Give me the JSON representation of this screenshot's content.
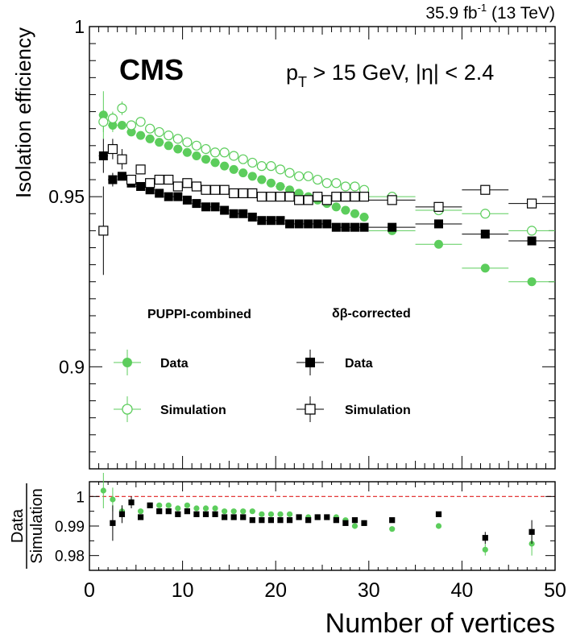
{
  "header": {
    "lumi_value": "35.9 fb",
    "lumi_exp": "-1",
    "energy": "(13 TeV)"
  },
  "labels": {
    "cms": "CMS",
    "cut_p": "p",
    "cut_sub": "T",
    "cut_rest": " > 15 GeV, |η| < 2.4",
    "legend_group_puppi": "PUPPI-combined",
    "legend_group_db": "δβ-corrected",
    "legend_data_1": "Data",
    "legend_sim_1": "Simulation",
    "legend_data_2": "Data",
    "legend_sim_2": "Simulation"
  },
  "colors": {
    "puppi": "#5ccd5c",
    "deltabeta": "#000000",
    "unity_line": "#e02020"
  },
  "chart_data": [
    {
      "type": "scatter",
      "title": "",
      "xlabel": "Number of vertices",
      "ylabel": "Isolation efficiency",
      "xlim": [
        0,
        50
      ],
      "ylim": [
        0.87,
        1.0
      ],
      "yticks": [
        "0.9",
        "0.95",
        "1"
      ],
      "xticks": [
        "0",
        "10",
        "20",
        "30",
        "40",
        "50"
      ],
      "legend_position": "bottom-left",
      "series": [
        {
          "name": "PUPPI-combined Data",
          "marker": "filled-circle",
          "x": [
            1.5,
            2.5,
            3.5,
            4.5,
            5.5,
            6.5,
            7.5,
            8.5,
            9.5,
            10.5,
            11.5,
            12.5,
            13.5,
            14.5,
            15.5,
            16.5,
            17.5,
            18.5,
            19.5,
            20.5,
            21.5,
            22.5,
            23.5,
            24.5,
            25.5,
            26.5,
            27.5,
            28.5,
            29.5,
            32.5,
            37.5,
            42.5,
            47.5
          ],
          "y": [
            0.974,
            0.971,
            0.971,
            0.969,
            0.968,
            0.967,
            0.966,
            0.965,
            0.964,
            0.963,
            0.962,
            0.961,
            0.96,
            0.959,
            0.958,
            0.957,
            0.956,
            0.955,
            0.954,
            0.953,
            0.952,
            0.951,
            0.95,
            0.949,
            0.948,
            0.947,
            0.946,
            0.945,
            0.944,
            0.94,
            0.936,
            0.929,
            0.925
          ],
          "xerr": [
            0.5,
            0.5,
            0.5,
            0.5,
            0.5,
            0.5,
            0.5,
            0.5,
            0.5,
            0.5,
            0.5,
            0.5,
            0.5,
            0.5,
            0.5,
            0.5,
            0.5,
            0.5,
            0.5,
            0.5,
            0.5,
            0.5,
            0.5,
            0.5,
            0.5,
            0.5,
            0.5,
            0.5,
            0.5,
            2.5,
            2.5,
            2.5,
            2.5
          ],
          "yerr": [
            0.007,
            0.002,
            0,
            0,
            0,
            0,
            0,
            0,
            0,
            0,
            0,
            0,
            0,
            0,
            0,
            0,
            0,
            0,
            0,
            0,
            0,
            0,
            0,
            0,
            0,
            0,
            0,
            0,
            0,
            0,
            0,
            0,
            0
          ]
        },
        {
          "name": "PUPPI-combined Simulation",
          "marker": "open-circle",
          "x": [
            1.5,
            2.5,
            3.5,
            4.5,
            5.5,
            6.5,
            7.5,
            8.5,
            9.5,
            10.5,
            11.5,
            12.5,
            13.5,
            14.5,
            15.5,
            16.5,
            17.5,
            18.5,
            19.5,
            20.5,
            21.5,
            22.5,
            23.5,
            24.5,
            25.5,
            26.5,
            27.5,
            28.5,
            29.5,
            32.5,
            37.5,
            42.5,
            47.5
          ],
          "y": [
            0.972,
            0.973,
            0.976,
            0.971,
            0.972,
            0.97,
            0.969,
            0.968,
            0.967,
            0.966,
            0.965,
            0.964,
            0.963,
            0.963,
            0.962,
            0.961,
            0.96,
            0.959,
            0.959,
            0.958,
            0.957,
            0.956,
            0.956,
            0.955,
            0.954,
            0.954,
            0.953,
            0.953,
            0.952,
            0.95,
            0.946,
            0.945,
            0.94
          ],
          "xerr": [
            0.5,
            0.5,
            0.5,
            0.5,
            0.5,
            0.5,
            0.5,
            0.5,
            0.5,
            0.5,
            0.5,
            0.5,
            0.5,
            0.5,
            0.5,
            0.5,
            0.5,
            0.5,
            0.5,
            0.5,
            0.5,
            0.5,
            0.5,
            0.5,
            0.5,
            0.5,
            0.5,
            0.5,
            0.5,
            2.5,
            2.5,
            2.5,
            2.5
          ],
          "yerr": [
            0.003,
            0.002,
            0.002,
            0,
            0,
            0,
            0,
            0,
            0,
            0,
            0,
            0,
            0,
            0,
            0,
            0,
            0,
            0,
            0,
            0,
            0,
            0,
            0,
            0,
            0,
            0,
            0,
            0,
            0,
            0,
            0,
            0,
            0
          ]
        },
        {
          "name": "δβ-corrected Data",
          "marker": "filled-square",
          "x": [
            1.5,
            2.5,
            3.5,
            4.5,
            5.5,
            6.5,
            7.5,
            8.5,
            9.5,
            10.5,
            11.5,
            12.5,
            13.5,
            14.5,
            15.5,
            16.5,
            17.5,
            18.5,
            19.5,
            20.5,
            21.5,
            22.5,
            23.5,
            24.5,
            25.5,
            26.5,
            27.5,
            28.5,
            29.5,
            32.5,
            37.5,
            42.5,
            47.5
          ],
          "y": [
            0.962,
            0.955,
            0.956,
            0.954,
            0.953,
            0.952,
            0.951,
            0.95,
            0.95,
            0.949,
            0.948,
            0.947,
            0.947,
            0.946,
            0.945,
            0.945,
            0.944,
            0.943,
            0.943,
            0.943,
            0.942,
            0.942,
            0.942,
            0.942,
            0.942,
            0.941,
            0.941,
            0.941,
            0.941,
            0.941,
            0.942,
            0.939,
            0.937
          ],
          "xerr": [
            0.5,
            0.5,
            0.5,
            0.5,
            0.5,
            0.5,
            0.5,
            0.5,
            0.5,
            0.5,
            0.5,
            0.5,
            0.5,
            0.5,
            0.5,
            0.5,
            0.5,
            0.5,
            0.5,
            0.5,
            0.5,
            0.5,
            0.5,
            0.5,
            0.5,
            0.5,
            0.5,
            0.5,
            0.5,
            2.5,
            2.5,
            2.5,
            2.5
          ],
          "yerr": [
            0.005,
            0.002,
            0,
            0,
            0,
            0,
            0,
            0,
            0,
            0,
            0,
            0,
            0,
            0,
            0,
            0,
            0,
            0,
            0,
            0,
            0,
            0,
            0,
            0,
            0,
            0,
            0,
            0,
            0,
            0,
            0,
            0,
            0
          ]
        },
        {
          "name": "δβ-corrected Simulation",
          "marker": "open-square",
          "x": [
            1.5,
            2.5,
            3.5,
            4.5,
            5.5,
            6.5,
            7.5,
            8.5,
            9.5,
            10.5,
            11.5,
            12.5,
            13.5,
            14.5,
            15.5,
            16.5,
            17.5,
            18.5,
            19.5,
            20.5,
            21.5,
            22.5,
            23.5,
            24.5,
            25.5,
            26.5,
            27.5,
            28.5,
            29.5,
            32.5,
            37.5,
            42.5,
            47.5
          ],
          "y": [
            0.94,
            0.964,
            0.961,
            0.955,
            0.958,
            0.954,
            0.955,
            0.955,
            0.953,
            0.954,
            0.953,
            0.952,
            0.952,
            0.952,
            0.951,
            0.951,
            0.951,
            0.95,
            0.95,
            0.95,
            0.95,
            0.949,
            0.949,
            0.95,
            0.949,
            0.95,
            0.95,
            0.95,
            0.95,
            0.949,
            0.947,
            0.952,
            0.948
          ],
          "xerr": [
            0.5,
            0.5,
            0.5,
            0.5,
            0.5,
            0.5,
            0.5,
            0.5,
            0.5,
            0.5,
            0.5,
            0.5,
            0.5,
            0.5,
            0.5,
            0.5,
            0.5,
            0.5,
            0.5,
            0.5,
            0.5,
            0.5,
            0.5,
            0.5,
            0.5,
            0.5,
            0.5,
            0.5,
            0.5,
            2.5,
            2.5,
            2.5,
            2.5
          ],
          "yerr": [
            0.013,
            0.003,
            0.003,
            0,
            0,
            0,
            0,
            0,
            0,
            0,
            0,
            0,
            0,
            0,
            0,
            0,
            0,
            0,
            0,
            0,
            0,
            0,
            0,
            0,
            0,
            0,
            0,
            0,
            0,
            0,
            0,
            0,
            0
          ]
        }
      ]
    },
    {
      "type": "scatter",
      "title": "",
      "xlabel": "Number of vertices",
      "ylabel_top": "Data",
      "ylabel_bottom": "Simulation",
      "xlim": [
        0,
        50
      ],
      "ylim": [
        0.975,
        1.005
      ],
      "yticks": [
        "0.98",
        "0.99",
        "1"
      ],
      "reference_line": 1.0,
      "series": [
        {
          "name": "PUPPI-combined",
          "marker": "filled-circle",
          "x": [
            1.5,
            2.5,
            3.5,
            4.5,
            5.5,
            6.5,
            7.5,
            8.5,
            9.5,
            10.5,
            11.5,
            12.5,
            13.5,
            14.5,
            15.5,
            16.5,
            17.5,
            18.5,
            19.5,
            20.5,
            21.5,
            22.5,
            23.5,
            24.5,
            25.5,
            26.5,
            27.5,
            28.5,
            29.5,
            32.5,
            37.5,
            42.5,
            47.5
          ],
          "y": [
            1.002,
            0.999,
            0.995,
            0.998,
            0.995,
            0.997,
            0.997,
            0.997,
            0.996,
            0.997,
            0.996,
            0.996,
            0.996,
            0.995,
            0.995,
            0.995,
            0.995,
            0.994,
            0.994,
            0.994,
            0.994,
            0.993,
            0.993,
            0.993,
            0.993,
            0.993,
            0.992,
            0.99,
            0.991,
            0.989,
            0.99,
            0.982,
            0.984
          ],
          "yerr": [
            0.006,
            0.004,
            0.002,
            0,
            0,
            0,
            0,
            0,
            0,
            0,
            0,
            0,
            0,
            0,
            0,
            0,
            0,
            0,
            0,
            0,
            0,
            0,
            0,
            0,
            0,
            0,
            0,
            0,
            0,
            0,
            0,
            0.002,
            0.004
          ]
        },
        {
          "name": "δβ-corrected",
          "marker": "filled-square",
          "x": [
            1.5,
            2.5,
            3.5,
            4.5,
            5.5,
            6.5,
            7.5,
            8.5,
            9.5,
            10.5,
            11.5,
            12.5,
            13.5,
            14.5,
            15.5,
            16.5,
            17.5,
            18.5,
            19.5,
            20.5,
            21.5,
            22.5,
            23.5,
            24.5,
            25.5,
            26.5,
            27.5,
            28.5,
            29.5,
            32.5,
            37.5,
            42.5,
            47.5
          ],
          "y": [
            null,
            0.991,
            0.994,
            0.998,
            0.993,
            0.997,
            0.995,
            0.995,
            0.994,
            0.995,
            0.994,
            0.994,
            0.994,
            0.993,
            0.993,
            0.993,
            0.992,
            0.992,
            0.992,
            0.992,
            0.992,
            0.993,
            0.992,
            0.993,
            0.993,
            0.992,
            0.991,
            0.992,
            0.991,
            0.992,
            0.994,
            0.986,
            0.988
          ],
          "yerr": [
            0,
            0.006,
            0.003,
            0.002,
            0,
            0,
            0,
            0,
            0,
            0,
            0,
            0,
            0,
            0,
            0,
            0,
            0,
            0,
            0,
            0,
            0,
            0,
            0,
            0,
            0,
            0,
            0,
            0,
            0,
            0,
            0,
            0.002,
            0.004
          ]
        }
      ]
    }
  ]
}
